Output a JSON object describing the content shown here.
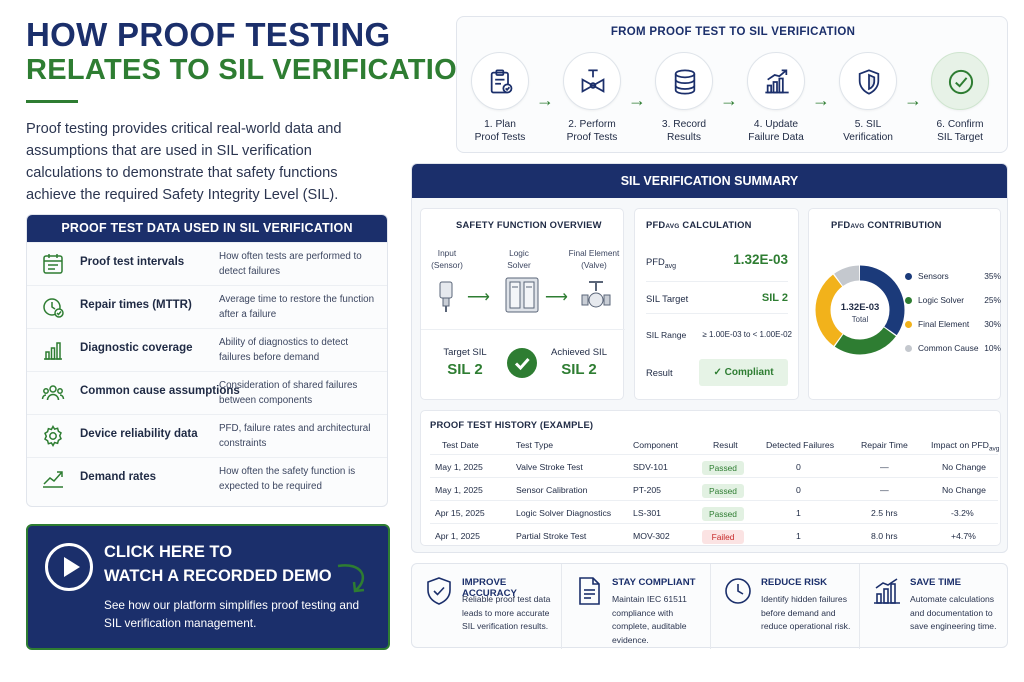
{
  "title": {
    "line1": "HOW PROOF TESTING",
    "line2": "RELATES TO SIL VERIFICATION"
  },
  "intro": "Proof testing provides critical real-world data and assumptions that are used in SIL verification calculations to demonstrate that safety functions achieve the required Safety Integrity Level (SIL).",
  "proof_test_data": {
    "heading": "PROOF TEST DATA USED IN SIL VERIFICATION",
    "rows": [
      {
        "name": "Proof test intervals",
        "desc": "How often tests are performed to detect failures",
        "icon": "calendar-checklist-icon"
      },
      {
        "name": "Repair times (MTTR)",
        "desc": "Average time to restore the function after a failure",
        "icon": "clock-check-icon"
      },
      {
        "name": "Diagnostic coverage",
        "desc": "Ability of diagnostics to detect failures before demand",
        "icon": "bar-chart-icon"
      },
      {
        "name": "Common cause assumptions",
        "desc": "Consideration of shared failures between components",
        "icon": "people-group-icon"
      },
      {
        "name": "Device reliability data",
        "desc": "PFD, failure rates and architectural constraints",
        "icon": "gear-icon"
      },
      {
        "name": "Demand rates",
        "desc": "How often the safety function is expected to be required",
        "icon": "trend-up-icon"
      }
    ]
  },
  "demo": {
    "line1": "CLICK HERE TO",
    "line2": "WATCH A RECORDED DEMO",
    "sub": "See how our platform simplifies proof testing and SIL verification management."
  },
  "flow": {
    "title": "FROM PROOF TEST TO SIL VERIFICATION",
    "steps": [
      {
        "l1": "1. Plan",
        "l2": "Proof Tests",
        "icon": "clipboard-check-icon"
      },
      {
        "l1": "2. Perform",
        "l2": "Proof Tests",
        "icon": "valve-icon"
      },
      {
        "l1": "3. Record",
        "l2": "Results",
        "icon": "database-icon"
      },
      {
        "l1": "4. Update",
        "l2": "Failure Data",
        "icon": "bar-chart-up-icon"
      },
      {
        "l1": "5. SIL",
        "l2": "Verification",
        "icon": "shield-icon"
      },
      {
        "l1": "6. Confirm",
        "l2": "SIL Target",
        "icon": "check-circle-icon"
      }
    ]
  },
  "sil_summary": {
    "heading": "SIL VERIFICATION SUMMARY",
    "overview": {
      "title": "SAFETY FUNCTION OVERVIEW",
      "input_l1": "Input",
      "input_l2": "(Sensor)",
      "logic_l1": "Logic",
      "logic_l2": "Solver",
      "final_l1": "Final Element",
      "final_l2": "(Valve)",
      "target_label": "Target SIL",
      "target_value": "SIL 2",
      "achieved_label": "Achieved SIL",
      "achieved_value": "SIL 2"
    },
    "pfd": {
      "title_main": "PFD",
      "title_sub": "AVG",
      "title_rest": " CALCULATION",
      "pfd_label_main": "PFD",
      "pfd_label_sub": "avg",
      "pfd_value": "1.32E-03",
      "sil_target_label": "SIL Target",
      "sil_target_value": "SIL 2",
      "range_label": "SIL Range",
      "range_value": "≥ 1.00E-03 to < 1.00E-02",
      "result_label": "Result",
      "result_value": "Compliant"
    },
    "contribution": {
      "title_main": "PFD",
      "title_sub": "AVG",
      "title_rest": " CONTRIBUTION",
      "center_value": "1.32E-03",
      "center_label": "Total",
      "items": [
        {
          "name": "Sensors",
          "value": "35%",
          "pct": 35,
          "color": "#1b3a7a"
        },
        {
          "name": "Logic Solver",
          "value": "25%",
          "pct": 25,
          "color": "#2e7d32"
        },
        {
          "name": "Final Element",
          "value": "30%",
          "pct": 30,
          "color": "#f2b21b"
        },
        {
          "name": "Common Cause",
          "value": "10%",
          "pct": 10,
          "color": "#c4c8ce"
        }
      ]
    },
    "history": {
      "title": "PROOF TEST HISTORY (EXAMPLE)",
      "headers": [
        "Test Date",
        "Test Type",
        "Component",
        "Result",
        "Detected Failures",
        "Repair Time",
        "Impact on PFD",
        "avg"
      ],
      "rows": [
        {
          "date": "May 1, 2025",
          "type": "Valve Stroke Test",
          "component": "SDV-101",
          "result": "Passed",
          "failures": "0",
          "repair": "—",
          "impact": "No Change"
        },
        {
          "date": "May 1, 2025",
          "type": "Sensor Calibration",
          "component": "PT-205",
          "result": "Passed",
          "failures": "0",
          "repair": "—",
          "impact": "No Change"
        },
        {
          "date": "Apr 15, 2025",
          "type": "Logic Solver Diagnostics",
          "component": "LS-301",
          "result": "Passed",
          "failures": "1",
          "repair": "2.5 hrs",
          "impact": "-3.2%"
        },
        {
          "date": "Apr 1, 2025",
          "type": "Partial Stroke Test",
          "component": "MOV-302",
          "result": "Failed",
          "failures": "1",
          "repair": "8.0 hrs",
          "impact": "+4.7%"
        }
      ]
    }
  },
  "benefits": [
    {
      "title": "IMPROVE ACCURACY",
      "desc": "Reliable proof test data leads to more accurate SIL verification results.",
      "icon": "shield-check-icon"
    },
    {
      "title": "STAY COMPLIANT",
      "desc": "Maintain IEC 61511 compliance with complete, auditable evidence.",
      "icon": "document-icon"
    },
    {
      "title": "REDUCE RISK",
      "desc": "Identify hidden failures before demand and reduce operational risk.",
      "icon": "clock-icon"
    },
    {
      "title": "SAVE TIME",
      "desc": "Automate calculations and documentation to save engineering time.",
      "icon": "bar-chart-icon"
    }
  ],
  "colors": {
    "navy": "#1b2f6b",
    "green": "#2e7d32",
    "fail_red": "#c62828"
  }
}
